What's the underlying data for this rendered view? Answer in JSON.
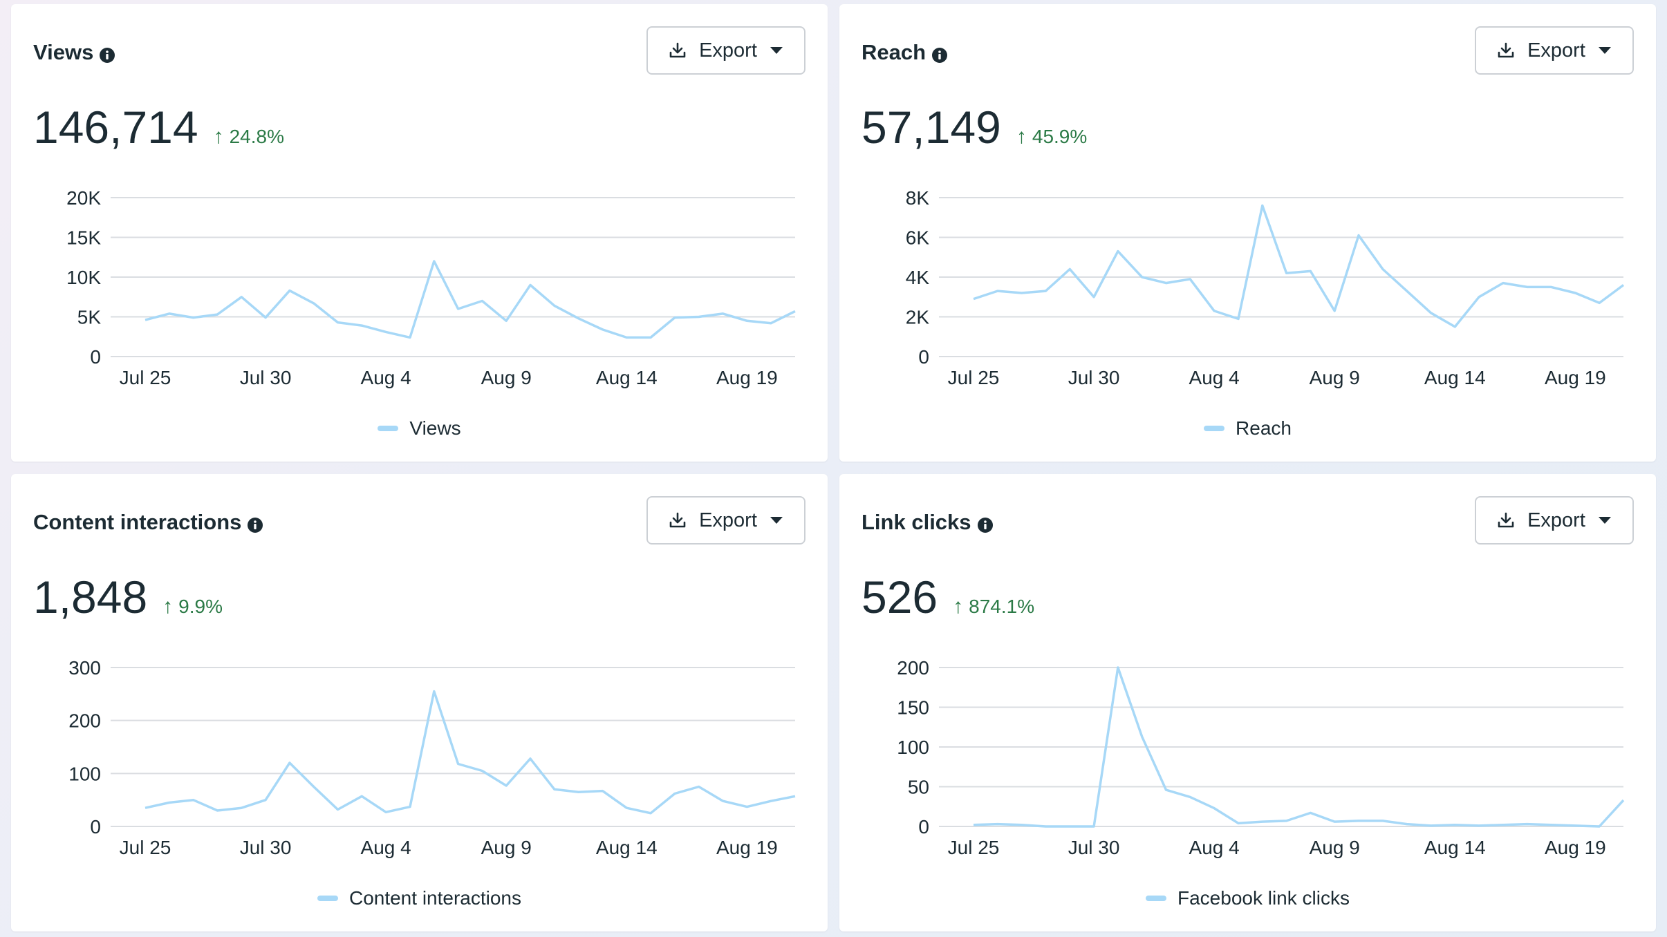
{
  "export_label": "Export",
  "colors": {
    "series": "#a7d8f7",
    "grid": "#dadde1",
    "positive": "#2b7a46"
  },
  "x_tick_labels": [
    "Jul 25",
    "Jul 30",
    "Aug 4",
    "Aug 9",
    "Aug 14",
    "Aug 19"
  ],
  "cards": [
    {
      "title": "Views",
      "value": "146,714",
      "change": "24.8%",
      "legend": "Views"
    },
    {
      "title": "Reach",
      "value": "57,149",
      "change": "45.9%",
      "legend": "Reach"
    },
    {
      "title": "Content interactions",
      "value": "1,848",
      "change": "9.9%",
      "legend": "Content interactions"
    },
    {
      "title": "Link clicks",
      "value": "526",
      "change": "874.1%",
      "legend": "Facebook link clicks"
    }
  ],
  "chart_data": [
    {
      "type": "line",
      "title": "Views",
      "x": [
        "Jul 25",
        "Jul 26",
        "Jul 27",
        "Jul 28",
        "Jul 29",
        "Jul 30",
        "Jul 31",
        "Aug 1",
        "Aug 2",
        "Aug 3",
        "Aug 4",
        "Aug 5",
        "Aug 6",
        "Aug 7",
        "Aug 8",
        "Aug 9",
        "Aug 10",
        "Aug 11",
        "Aug 12",
        "Aug 13",
        "Aug 14",
        "Aug 15",
        "Aug 16",
        "Aug 17",
        "Aug 18",
        "Aug 19",
        "Aug 20",
        "Aug 21"
      ],
      "series": [
        {
          "name": "Views",
          "values": [
            4600,
            5400,
            4900,
            5300,
            7500,
            4900,
            8300,
            6700,
            4300,
            3900,
            3100,
            2400,
            12000,
            6000,
            7000,
            4500,
            9000,
            6400,
            4800,
            3400,
            2400,
            2400,
            4900,
            5000,
            5400,
            4500,
            4200,
            5700
          ]
        }
      ],
      "yticks": [
        0,
        5000,
        10000,
        15000,
        20000
      ],
      "ytick_labels": [
        "0",
        "5K",
        "10K",
        "15K",
        "20K"
      ],
      "xticks": [
        "Jul 25",
        "Jul 30",
        "Aug 4",
        "Aug 9",
        "Aug 14",
        "Aug 19"
      ],
      "ylim": [
        0,
        20000
      ],
      "grid": true,
      "legend": "bottom-center"
    },
    {
      "type": "line",
      "title": "Reach",
      "x": [
        "Jul 25",
        "Jul 26",
        "Jul 27",
        "Jul 28",
        "Jul 29",
        "Jul 30",
        "Jul 31",
        "Aug 1",
        "Aug 2",
        "Aug 3",
        "Aug 4",
        "Aug 5",
        "Aug 6",
        "Aug 7",
        "Aug 8",
        "Aug 9",
        "Aug 10",
        "Aug 11",
        "Aug 12",
        "Aug 13",
        "Aug 14",
        "Aug 15",
        "Aug 16",
        "Aug 17",
        "Aug 18",
        "Aug 19",
        "Aug 20",
        "Aug 21"
      ],
      "series": [
        {
          "name": "Reach",
          "values": [
            2900,
            3300,
            3200,
            3300,
            4400,
            3000,
            5300,
            4000,
            3700,
            3900,
            2300,
            1900,
            7600,
            4200,
            4300,
            2300,
            6100,
            4400,
            3300,
            2200,
            1500,
            3000,
            3700,
            3500,
            3500,
            3200,
            2700,
            3600
          ]
        }
      ],
      "yticks": [
        0,
        2000,
        4000,
        6000,
        8000
      ],
      "ytick_labels": [
        "0",
        "2K",
        "4K",
        "6K",
        "8K"
      ],
      "xticks": [
        "Jul 25",
        "Jul 30",
        "Aug 4",
        "Aug 9",
        "Aug 14",
        "Aug 19"
      ],
      "ylim": [
        0,
        8000
      ],
      "grid": true,
      "legend": "bottom-center"
    },
    {
      "type": "line",
      "title": "Content interactions",
      "x": [
        "Jul 25",
        "Jul 26",
        "Jul 27",
        "Jul 28",
        "Jul 29",
        "Jul 30",
        "Jul 31",
        "Aug 1",
        "Aug 2",
        "Aug 3",
        "Aug 4",
        "Aug 5",
        "Aug 6",
        "Aug 7",
        "Aug 8",
        "Aug 9",
        "Aug 10",
        "Aug 11",
        "Aug 12",
        "Aug 13",
        "Aug 14",
        "Aug 15",
        "Aug 16",
        "Aug 17",
        "Aug 18",
        "Aug 19",
        "Aug 20",
        "Aug 21"
      ],
      "series": [
        {
          "name": "Content interactions",
          "values": [
            35,
            45,
            50,
            30,
            35,
            50,
            120,
            75,
            32,
            57,
            27,
            37,
            255,
            118,
            105,
            77,
            128,
            70,
            65,
            67,
            35,
            25,
            62,
            75,
            48,
            37,
            48,
            57
          ]
        }
      ],
      "yticks": [
        0,
        100,
        200,
        300
      ],
      "ytick_labels": [
        "0",
        "100",
        "200",
        "300"
      ],
      "xticks": [
        "Jul 25",
        "Jul 30",
        "Aug 4",
        "Aug 9",
        "Aug 14",
        "Aug 19"
      ],
      "ylim": [
        0,
        300
      ],
      "grid": true,
      "legend": "bottom-center"
    },
    {
      "type": "line",
      "title": "Link clicks",
      "x": [
        "Jul 25",
        "Jul 26",
        "Jul 27",
        "Jul 28",
        "Jul 29",
        "Jul 30",
        "Jul 31",
        "Aug 1",
        "Aug 2",
        "Aug 3",
        "Aug 4",
        "Aug 5",
        "Aug 6",
        "Aug 7",
        "Aug 8",
        "Aug 9",
        "Aug 10",
        "Aug 11",
        "Aug 12",
        "Aug 13",
        "Aug 14",
        "Aug 15",
        "Aug 16",
        "Aug 17",
        "Aug 18",
        "Aug 19",
        "Aug 20",
        "Aug 21"
      ],
      "series": [
        {
          "name": "Facebook link clicks",
          "values": [
            2,
            3,
            2,
            0,
            0,
            0,
            200,
            113,
            46,
            37,
            23,
            4,
            6,
            7,
            17,
            6,
            7,
            7,
            3,
            1,
            2,
            1,
            2,
            3,
            2,
            1,
            0,
            33
          ]
        }
      ],
      "yticks": [
        0,
        50,
        100,
        150,
        200
      ],
      "ytick_labels": [
        "0",
        "50",
        "100",
        "150",
        "200"
      ],
      "xticks": [
        "Jul 25",
        "Jul 30",
        "Aug 4",
        "Aug 9",
        "Aug 14",
        "Aug 19"
      ],
      "ylim": [
        0,
        200
      ],
      "grid": true,
      "legend": "bottom-center"
    }
  ]
}
